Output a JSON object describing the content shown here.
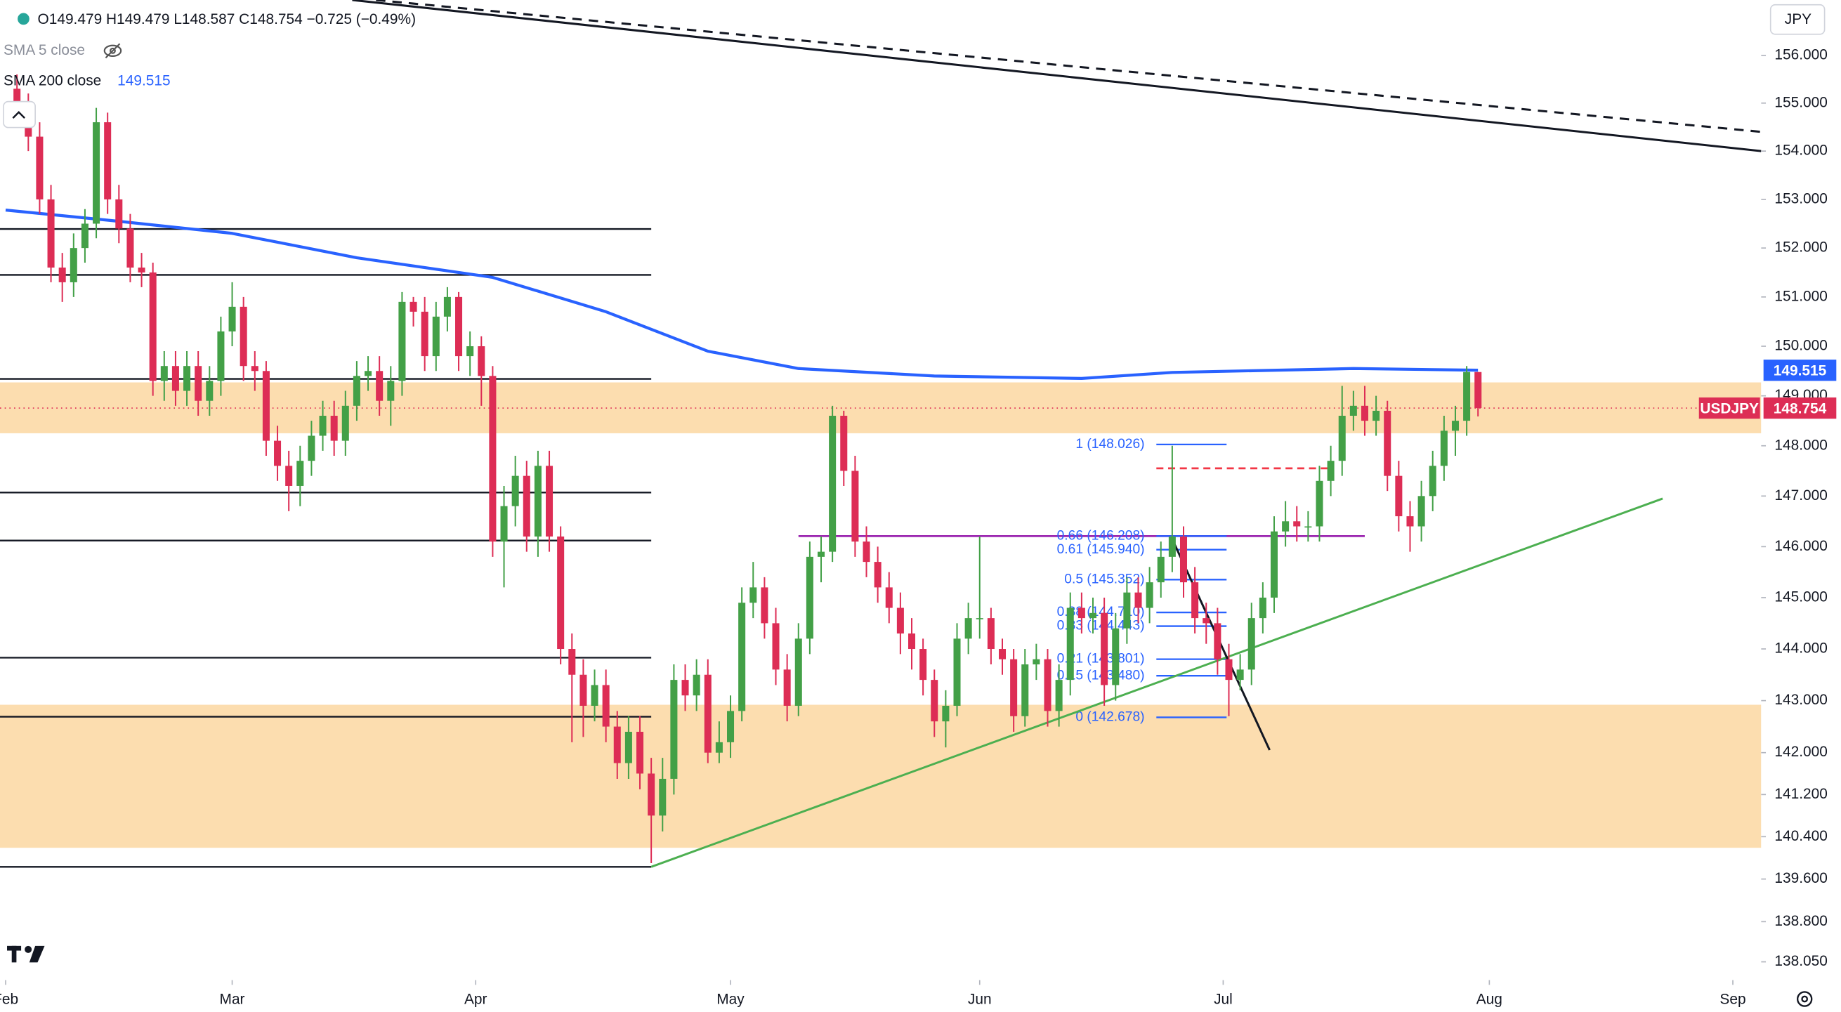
{
  "chart_data": {
    "type": "candlestick",
    "header": "O149.479 H149.479 L148.587 C148.754 −0.725 (−0.49%)",
    "symbol": "USDJPY",
    "currency": "JPY",
    "log_scale": true,
    "up_color": "#43a047",
    "down_color": "#dd2d55",
    "x": [
      1,
      2,
      3,
      4,
      5,
      6,
      7,
      8,
      9,
      10,
      11,
      12,
      13,
      14,
      15,
      16,
      17,
      18,
      19,
      20,
      21,
      22,
      23,
      24,
      25,
      26,
      27,
      28,
      29,
      30,
      31,
      32,
      33,
      34,
      35,
      36,
      37,
      38,
      39,
      40,
      41,
      42,
      43,
      44,
      45,
      46,
      47,
      48,
      49,
      50,
      51,
      52,
      53,
      54,
      55,
      56,
      57,
      58,
      59,
      60,
      61,
      62,
      63,
      64,
      65,
      66,
      67,
      68,
      69,
      70,
      71,
      72,
      73,
      74,
      75,
      76,
      77,
      78,
      79,
      80,
      81,
      82,
      83,
      84,
      85,
      86,
      87,
      88,
      89,
      90,
      91,
      92,
      93,
      94,
      95,
      96,
      97,
      98,
      99,
      100,
      101,
      102,
      103,
      104,
      105,
      106,
      107,
      108,
      109,
      110,
      111,
      112,
      113,
      114,
      115,
      116,
      117,
      118,
      119,
      120,
      121,
      122,
      123,
      124,
      125,
      126,
      127,
      128,
      129,
      130
    ],
    "open": [
      155.3,
      154.9,
      154.3,
      153.0,
      151.6,
      151.3,
      152.0,
      152.5,
      154.6,
      153.0,
      152.4,
      151.6,
      151.5,
      149.3,
      149.6,
      149.1,
      149.6,
      148.9,
      149.3,
      150.3,
      150.8,
      149.6,
      149.5,
      148.1,
      147.6,
      147.2,
      147.7,
      148.2,
      148.6,
      148.1,
      148.8,
      149.4,
      149.5,
      148.9,
      149.3,
      150.9,
      150.7,
      149.8,
      150.6,
      151.0,
      149.8,
      150.0,
      149.4,
      146.1,
      146.8,
      147.4,
      146.2,
      147.6,
      146.2,
      144.0,
      143.5,
      142.9,
      143.3,
      142.5,
      141.8,
      142.4,
      141.6,
      140.8,
      141.5,
      143.4,
      143.1,
      143.5,
      142.0,
      142.2,
      142.8,
      144.9,
      145.2,
      144.5,
      143.6,
      142.9,
      144.2,
      145.8,
      145.9,
      148.6,
      147.5,
      146.1,
      145.7,
      145.2,
      144.8,
      144.3,
      144.0,
      143.4,
      142.6,
      142.9,
      144.2,
      144.6,
      144.6,
      144.0,
      143.8,
      142.7,
      143.7,
      143.8,
      142.8,
      143.4,
      144.8,
      144.6,
      144.7,
      143.3,
      144.4,
      145.1,
      144.8,
      145.3,
      145.8,
      146.2,
      145.3,
      144.6,
      144.5,
      143.8,
      143.4,
      143.6,
      144.6,
      145.0,
      146.3,
      146.5,
      146.4,
      146.4,
      147.3,
      147.7,
      148.6,
      148.8,
      148.5,
      148.7,
      147.4,
      146.6,
      146.4,
      147.0,
      147.6,
      148.3,
      148.5,
      149.479
    ],
    "high": [
      155.6,
      155.2,
      154.6,
      153.3,
      151.9,
      152.3,
      152.8,
      154.9,
      154.8,
      153.3,
      152.7,
      151.9,
      151.7,
      149.9,
      149.9,
      149.9,
      149.9,
      149.6,
      150.6,
      151.3,
      151.0,
      149.9,
      149.7,
      148.4,
      147.9,
      148.0,
      148.5,
      148.9,
      148.9,
      149.1,
      149.7,
      149.8,
      149.8,
      149.6,
      151.1,
      151.0,
      151.0,
      150.9,
      151.2,
      151.1,
      150.3,
      150.2,
      149.6,
      147.2,
      147.8,
      147.7,
      147.9,
      147.9,
      146.4,
      144.3,
      143.8,
      143.6,
      143.6,
      142.8,
      142.7,
      142.7,
      141.9,
      141.9,
      143.7,
      143.7,
      143.8,
      143.8,
      142.6,
      143.1,
      145.2,
      145.7,
      145.4,
      144.8,
      143.9,
      144.5,
      146.1,
      146.2,
      148.8,
      148.7,
      147.8,
      146.4,
      146.0,
      145.5,
      145.1,
      144.6,
      144.2,
      143.6,
      143.2,
      144.5,
      144.9,
      146.2,
      144.8,
      144.2,
      144.0,
      144.0,
      144.1,
      144.0,
      143.7,
      145.1,
      145.1,
      145.0,
      145.0,
      144.7,
      145.4,
      145.4,
      145.6,
      146.1,
      148.0,
      146.4,
      145.6,
      144.9,
      144.8,
      144.1,
      143.9,
      144.9,
      145.3,
      146.6,
      146.9,
      146.8,
      146.7,
      147.6,
      148.0,
      149.2,
      149.1,
      149.2,
      149.0,
      148.9,
      147.7,
      146.9,
      147.3,
      147.9,
      148.6,
      148.8,
      149.6,
      149.479
    ],
    "low": [
      154.6,
      154.0,
      152.7,
      151.3,
      150.9,
      151.0,
      151.7,
      152.2,
      152.7,
      152.1,
      151.3,
      151.2,
      149.0,
      148.9,
      148.8,
      148.8,
      148.6,
      148.6,
      149.0,
      150.0,
      149.3,
      149.1,
      147.8,
      147.3,
      146.7,
      146.8,
      147.4,
      147.9,
      147.8,
      147.8,
      148.5,
      149.1,
      148.6,
      148.4,
      149.0,
      150.4,
      149.5,
      149.5,
      150.3,
      149.5,
      149.4,
      148.8,
      145.8,
      145.2,
      146.4,
      145.9,
      145.8,
      145.9,
      143.7,
      142.2,
      142.3,
      142.6,
      142.2,
      141.5,
      141.5,
      141.3,
      139.9,
      140.5,
      141.2,
      142.8,
      142.8,
      141.8,
      141.8,
      141.9,
      142.6,
      144.6,
      144.2,
      143.3,
      142.6,
      142.7,
      143.9,
      145.3,
      145.7,
      147.2,
      145.8,
      145.4,
      144.9,
      144.5,
      143.9,
      143.6,
      143.1,
      142.3,
      142.1,
      142.7,
      143.9,
      144.2,
      143.7,
      143.5,
      142.4,
      142.5,
      143.4,
      142.5,
      142.5,
      143.1,
      144.3,
      144.3,
      142.9,
      143.0,
      144.1,
      144.5,
      144.5,
      145.0,
      145.5,
      145.0,
      144.3,
      144.1,
      143.5,
      142.7,
      143.2,
      143.3,
      144.3,
      144.7,
      146.0,
      146.1,
      146.1,
      146.1,
      147.0,
      147.4,
      148.3,
      148.2,
      148.2,
      147.1,
      146.3,
      145.9,
      146.1,
      146.7,
      147.3,
      147.8,
      148.2,
      148.587
    ],
    "close": [
      154.9,
      154.3,
      153.0,
      151.6,
      151.3,
      152.0,
      152.5,
      154.6,
      153.0,
      152.4,
      151.6,
      151.5,
      149.3,
      149.6,
      149.1,
      149.6,
      148.9,
      149.3,
      150.3,
      150.8,
      149.6,
      149.5,
      148.1,
      147.6,
      147.2,
      147.7,
      148.2,
      148.6,
      148.1,
      148.8,
      149.4,
      149.5,
      148.9,
      149.3,
      150.9,
      150.7,
      149.8,
      150.6,
      151.0,
      149.8,
      150.0,
      149.4,
      146.1,
      146.8,
      147.4,
      146.2,
      147.6,
      146.2,
      144.0,
      143.5,
      142.9,
      143.3,
      142.5,
      141.8,
      142.4,
      141.6,
      140.8,
      141.5,
      143.4,
      143.1,
      143.5,
      142.0,
      142.2,
      142.8,
      144.9,
      145.2,
      144.5,
      143.6,
      142.9,
      144.2,
      145.8,
      145.9,
      148.6,
      147.5,
      146.1,
      145.7,
      145.2,
      144.8,
      144.3,
      144.0,
      143.4,
      142.6,
      142.9,
      144.2,
      144.6,
      144.6,
      144.0,
      143.8,
      142.7,
      143.7,
      143.8,
      142.8,
      143.4,
      144.8,
      144.6,
      144.7,
      143.3,
      144.4,
      145.1,
      144.8,
      145.3,
      145.8,
      146.2,
      145.3,
      144.6,
      144.5,
      143.8,
      143.4,
      143.6,
      144.6,
      145.0,
      146.3,
      146.5,
      146.4,
      146.4,
      147.3,
      147.7,
      148.6,
      148.8,
      148.5,
      148.7,
      147.4,
      146.6,
      146.4,
      147.0,
      147.6,
      148.3,
      148.5,
      149.479,
      148.754
    ],
    "indicators": [
      {
        "name": "SMA 5 close",
        "visible": false
      },
      {
        "name": "SMA 200 close",
        "visible": true,
        "color": "#2962ff",
        "x": [
          0,
          10,
          20,
          31,
          43,
          53,
          62,
          70,
          82,
          95,
          103,
          119,
          130
        ],
        "values": [
          152.78,
          152.55,
          152.3,
          151.8,
          151.4,
          150.7,
          149.9,
          149.55,
          149.4,
          149.35,
          149.47,
          149.55,
          149.515
        ]
      }
    ],
    "xlim": [
      -0.5,
      155
    ],
    "ylim": [
      137.71,
      157.17
    ],
    "xticks": [
      {
        "value": 0,
        "label": "Feb"
      },
      {
        "value": 20,
        "label": "Mar"
      },
      {
        "value": 41.5,
        "label": "Apr"
      },
      {
        "value": 64,
        "label": "May"
      },
      {
        "value": 86,
        "label": "Jun"
      },
      {
        "value": 107.5,
        "label": "Jul"
      },
      {
        "value": 131,
        "label": "Aug"
      },
      {
        "value": 152.5,
        "label": "Sep"
      }
    ],
    "yticks": [
      {
        "value": 156,
        "label": "156.000"
      },
      {
        "value": 155,
        "label": "155.000"
      },
      {
        "value": 154,
        "label": "154.000"
      },
      {
        "value": 153,
        "label": "153.000"
      },
      {
        "value": 152,
        "label": "152.000"
      },
      {
        "value": 151,
        "label": "151.000"
      },
      {
        "value": 150,
        "label": "150.000"
      },
      {
        "value": 149,
        "label": "149.000"
      },
      {
        "value": 148,
        "label": "148.000"
      },
      {
        "value": 147,
        "label": "147.000"
      },
      {
        "value": 146,
        "label": "146.000"
      },
      {
        "value": 145,
        "label": "145.000"
      },
      {
        "value": 144,
        "label": "144.000"
      },
      {
        "value": 143,
        "label": "143.000"
      },
      {
        "value": 142,
        "label": "142.000"
      },
      {
        "value": 141.2,
        "label": "141.200"
      },
      {
        "value": 140.4,
        "label": "140.400"
      },
      {
        "value": 139.6,
        "label": "139.600"
      },
      {
        "value": 138.8,
        "label": "138.800"
      },
      {
        "value": 138.05,
        "label": "138.050"
      }
    ],
    "drawings": {
      "zones": [
        {
          "low": 148.25,
          "high": 149.27,
          "color": "#fcd9a6"
        },
        {
          "low": 140.19,
          "high": 142.92,
          "color": "#fcd9a6"
        }
      ],
      "levels": {
        "values": [
          152.39,
          151.45,
          149.34,
          147.07,
          146.12,
          143.83,
          142.69,
          139.83
        ],
        "x_end": 57,
        "color": "#131722"
      },
      "hlines": [
        {
          "value": 146.208,
          "x": [
            70,
            120
          ],
          "color": "#9c27b0",
          "dashed": false
        },
        {
          "value": 147.55,
          "x": [
            101.6,
            117.1
          ],
          "color": "#f23645",
          "dashed": true
        }
      ],
      "trendlines": [
        {
          "x": [
            30.6,
            155
          ],
          "y": [
            157.17,
            154.0
          ],
          "color": "#131722",
          "dashed": false
        },
        {
          "x": [
            32.7,
            155
          ],
          "y": [
            157.17,
            154.4
          ],
          "color": "#131722",
          "dashed": true
        },
        {
          "x": [
            57,
            146.3
          ],
          "y": [
            139.83,
            146.95
          ],
          "color": "#4caf50",
          "dashed": false
        },
        {
          "x": [
            103.1,
            111.6
          ],
          "y": [
            146.1,
            142.05
          ],
          "color": "#131722",
          "dashed": false
        }
      ],
      "fib": {
        "x": [
          101.6,
          107.8
        ],
        "color": "#2962ff",
        "levels": [
          {
            "value": 148.026,
            "label": "1 (148.026)"
          },
          {
            "value": 146.208,
            "label": "0.66 (146.208)"
          },
          {
            "value": 145.94,
            "label": "0.61 (145.940)"
          },
          {
            "value": 145.352,
            "label": "0.5 (145.352)"
          },
          {
            "value": 144.71,
            "label": "0.38 (144.710)"
          },
          {
            "value": 144.443,
            "label": "0.33 (144.443)"
          },
          {
            "value": 143.801,
            "label": "0.21 (143.801)"
          },
          {
            "value": 143.48,
            "label": "0.15 (143.480)"
          },
          {
            "value": 142.678,
            "label": "0 (142.678)"
          }
        ]
      }
    }
  }
}
